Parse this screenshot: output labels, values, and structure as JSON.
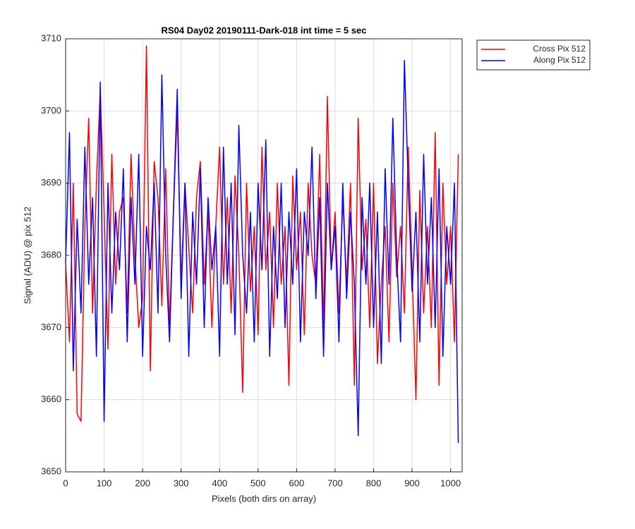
{
  "chart_data": {
    "type": "line",
    "title": "RS04 Day02 20190111-Dark-018 int time = 5 sec",
    "xlabel": "Pixels (both dirs on array)",
    "ylabel": "Signal (ADU) @ pix 512",
    "x": [
      0,
      10,
      20,
      30,
      40,
      50,
      60,
      70,
      80,
      90,
      100,
      110,
      120,
      130,
      140,
      150,
      160,
      170,
      180,
      190,
      200,
      210,
      220,
      230,
      240,
      250,
      260,
      270,
      280,
      290,
      300,
      310,
      320,
      330,
      340,
      350,
      360,
      370,
      380,
      390,
      400,
      410,
      420,
      430,
      440,
      450,
      460,
      470,
      480,
      490,
      500,
      510,
      520,
      530,
      540,
      550,
      560,
      570,
      580,
      590,
      600,
      610,
      620,
      630,
      640,
      650,
      660,
      670,
      680,
      690,
      700,
      710,
      720,
      730,
      740,
      750,
      760,
      770,
      780,
      790,
      800,
      810,
      820,
      830,
      840,
      850,
      860,
      870,
      880,
      890,
      900,
      910,
      920,
      930,
      940,
      950,
      960,
      970,
      980,
      990,
      1000,
      1010,
      1020
    ],
    "series": [
      {
        "name": "Cross Pix 512",
        "color": "#ff0000",
        "values": [
          3679,
          3668,
          3690,
          3658,
          3657,
          3684,
          3699,
          3672,
          3690,
          3703,
          3686,
          3667,
          3694,
          3676,
          3686,
          3688,
          3672,
          3694,
          3680,
          3670,
          3674,
          3709,
          3664,
          3693,
          3688,
          3673,
          3692,
          3670,
          3686,
          3700,
          3676,
          3690,
          3681,
          3672,
          3688,
          3693,
          3676,
          3686,
          3670,
          3684,
          3695,
          3676,
          3688,
          3672,
          3691,
          3680,
          3661,
          3690,
          3675,
          3684,
          3669,
          3695,
          3678,
          3686,
          3670,
          3690,
          3676,
          3684,
          3662,
          3691,
          3678,
          3686,
          3669,
          3690,
          3680,
          3676,
          3694,
          3670,
          3702,
          3678,
          3686,
          3672,
          3688,
          3676,
          3690,
          3662,
          3699,
          3678,
          3685,
          3670,
          3690,
          3665,
          3676,
          3684,
          3668,
          3690,
          3677,
          3684,
          3672,
          3695,
          3678,
          3660,
          3689,
          3672,
          3684,
          3670,
          3697,
          3662,
          3690,
          3676,
          3684,
          3668,
          3694
        ]
      },
      {
        "name": "Along Pix 512",
        "color": "#0000ff",
        "values": [
          3679,
          3697,
          3664,
          3685,
          3672,
          3695,
          3676,
          3688,
          3666,
          3704,
          3657,
          3690,
          3672,
          3686,
          3678,
          3692,
          3668,
          3688,
          3676,
          3694,
          3666,
          3684,
          3678,
          3690,
          3672,
          3705,
          3680,
          3668,
          3686,
          3703,
          3674,
          3690,
          3666,
          3686,
          3676,
          3692,
          3670,
          3688,
          3678,
          3684,
          3666,
          3695,
          3676,
          3690,
          3669,
          3698,
          3680,
          3672,
          3686,
          3668,
          3690,
          3678,
          3696,
          3666,
          3684,
          3674,
          3690,
          3670,
          3686,
          3676,
          3692,
          3668,
          3686,
          3680,
          3695,
          3674,
          3688,
          3666,
          3690,
          3678,
          3684,
          3668,
          3690,
          3674,
          3686,
          3676,
          3655,
          3688,
          3676,
          3690,
          3670,
          3686,
          3665,
          3692,
          3676,
          3699,
          3680,
          3668,
          3707,
          3690,
          3675,
          3686,
          3668,
          3694,
          3676,
          3688,
          3670,
          3692,
          3666,
          3684,
          3676,
          3690,
          3654
        ]
      }
    ],
    "xlim": [
      0,
      1030
    ],
    "ylim": [
      3650,
      3710
    ],
    "xticks": [
      0,
      100,
      200,
      300,
      400,
      500,
      600,
      700,
      800,
      900,
      1000
    ],
    "yticks": [
      3650,
      3660,
      3670,
      3680,
      3690,
      3700,
      3710
    ],
    "grid": true,
    "legend": "northeastoutside"
  }
}
